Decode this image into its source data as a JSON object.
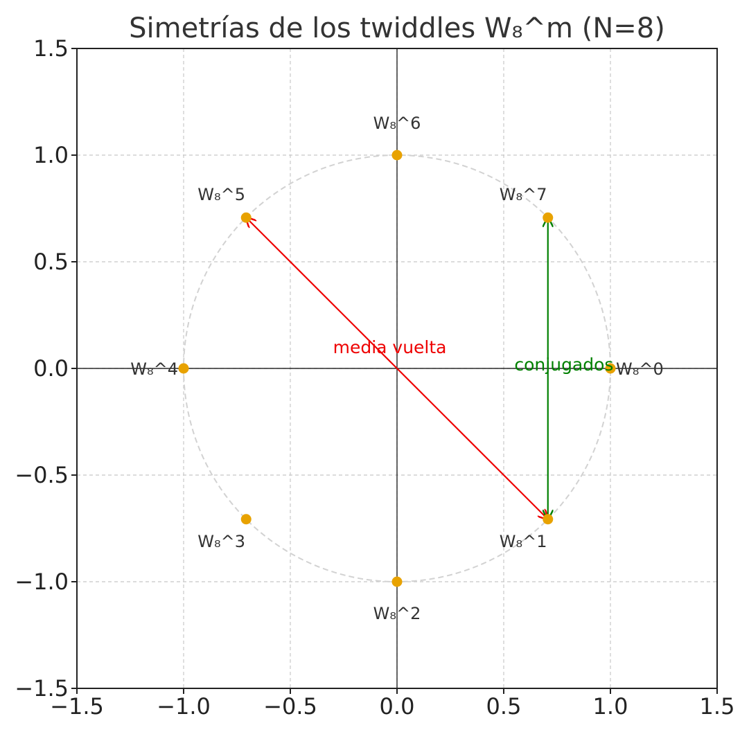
{
  "chart_data": {
    "type": "scatter",
    "title": "Simetrías de los twiddles W₈^m (N=8)",
    "xlabel": "",
    "ylabel": "",
    "xlim": [
      -1.5,
      1.5
    ],
    "ylim": [
      -1.5,
      1.5
    ],
    "xticks": [
      -1.5,
      -1.0,
      -0.5,
      0.0,
      0.5,
      1.0,
      1.5
    ],
    "yticks": [
      -1.5,
      -1.0,
      -0.5,
      0.0,
      0.5,
      1.0,
      1.5
    ],
    "xtick_labels": [
      "−1.5",
      "−1.0",
      "−0.5",
      "0.0",
      "0.5",
      "1.0",
      "1.5"
    ],
    "ytick_labels": [
      "−1.5",
      "−1.0",
      "−0.5",
      "0.0",
      "0.5",
      "1.0",
      "1.5"
    ],
    "grid": true,
    "unit_circle": {
      "radius": 1.0,
      "style": "dashed",
      "color": "#cccccc"
    },
    "points": [
      {
        "label": "W₈^0",
        "x": 1.0,
        "y": 0.0
      },
      {
        "label": "W₈^1",
        "x": 0.707,
        "y": -0.707
      },
      {
        "label": "W₈^2",
        "x": 0.0,
        "y": -1.0
      },
      {
        "label": "W₈^3",
        "x": -0.707,
        "y": -0.707
      },
      {
        "label": "W₈^4",
        "x": -1.0,
        "y": 0.0
      },
      {
        "label": "W₈^5",
        "x": -0.707,
        "y": 0.707
      },
      {
        "label": "W₈^6",
        "x": 0.0,
        "y": 1.0
      },
      {
        "label": "W₈^7",
        "x": 0.707,
        "y": 0.707
      }
    ],
    "point_color": "#e8a200",
    "annotations": [
      {
        "text": "media vuelta",
        "color": "#ee0000",
        "from": [
          0.707,
          -0.707
        ],
        "to": [
          -0.707,
          0.707
        ],
        "text_x": -0.3,
        "text_y": 0.1
      },
      {
        "text": "conjugados",
        "color": "#008000",
        "from": [
          0.707,
          0.707
        ],
        "to": [
          0.707,
          -0.707
        ],
        "text_x": 0.55,
        "text_y": 0.02
      }
    ]
  }
}
